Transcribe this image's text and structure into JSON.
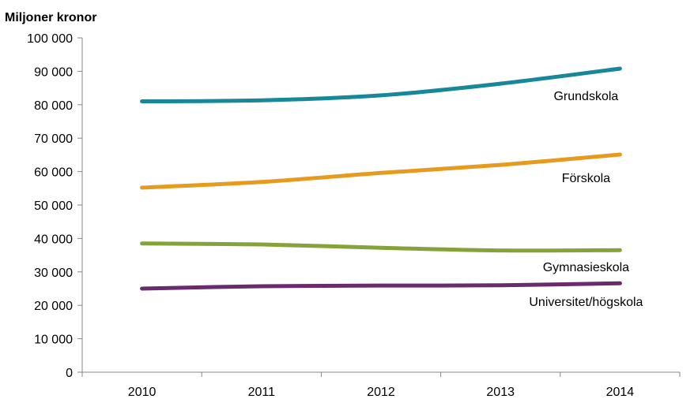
{
  "chart_data": {
    "type": "line",
    "title": "",
    "ylabel": "Miljoner kronor",
    "xlabel": "",
    "categories": [
      "2010",
      "2011",
      "2012",
      "2013",
      "2014"
    ],
    "ylim": [
      0,
      100000
    ],
    "yticks": [
      0,
      10000,
      20000,
      30000,
      40000,
      50000,
      60000,
      70000,
      80000,
      90000,
      100000
    ],
    "ytick_labels": [
      "0",
      "10 000",
      "20 000",
      "30 000",
      "40 000",
      "50 000",
      "60 000",
      "70 000",
      "80 000",
      "90 000",
      "100 000"
    ],
    "grid": false,
    "series": [
      {
        "name": "Grundskola",
        "color": "#17879A",
        "values": [
          81000,
          81300,
          82800,
          86300,
          90800
        ]
      },
      {
        "name": "Förskola",
        "color": "#E69A1E",
        "values": [
          55200,
          56900,
          59600,
          62000,
          65100
        ]
      },
      {
        "name": "Gymnasieskola",
        "color": "#86A33A",
        "values": [
          38500,
          38200,
          37200,
          36400,
          36500
        ]
      },
      {
        "name": "Universitet/högskola",
        "color": "#6A2A6E",
        "values": [
          25000,
          25700,
          25900,
          26000,
          26600
        ]
      }
    ]
  }
}
